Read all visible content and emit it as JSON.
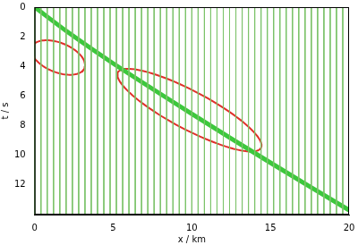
{
  "chart_data": {
    "type": "line",
    "x_label": "x / km",
    "y_label": "t / s",
    "xlim": [
      0,
      20
    ],
    "ylim": [
      0,
      14
    ],
    "xticks": [
      0,
      5,
      10,
      15,
      20
    ],
    "yticks": [
      0,
      2,
      4,
      6,
      8,
      10,
      12
    ],
    "grid": false,
    "traces": {
      "x": [
        0,
        0.4,
        0.8,
        1.2,
        1.6,
        2,
        2.4,
        2.8,
        3.2,
        3.6,
        4,
        4.4,
        4.8,
        5.2,
        5.6,
        6,
        6.4,
        6.8,
        7.2,
        7.6,
        8,
        8.4,
        8.8,
        9.2,
        9.6,
        10,
        10.4,
        10.8,
        11.2,
        11.6,
        12,
        12.4,
        12.8,
        13.2,
        13.6,
        14,
        14.4,
        14.8,
        15.2,
        15.6,
        16,
        16.4,
        16.8,
        17.2,
        17.6,
        18,
        18.4,
        18.8,
        19.2,
        19.6,
        20
      ],
      "color": "#7cc36a"
    },
    "series": [
      {
        "x": [
          0,
          2,
          5,
          10,
          15,
          20
        ],
        "values": [
          0,
          1.6,
          3.8,
          7.2,
          10.5,
          13.7
        ],
        "color": "#3cc83c"
      }
    ],
    "annotations": [
      {
        "type": "ellipse",
        "center": [
          1.5,
          3.4
        ],
        "axis_a": [
          1.7,
          0.6
        ],
        "axis_b": [
          -0.15,
          1.0
        ],
        "color": "#e0302a"
      },
      {
        "type": "ellipse",
        "center": [
          9.85,
          6.95
        ],
        "axis_a": [
          4.55,
          2.55
        ],
        "axis_b": [
          -0.57,
          1.14
        ],
        "color": "#e0302a"
      }
    ]
  }
}
